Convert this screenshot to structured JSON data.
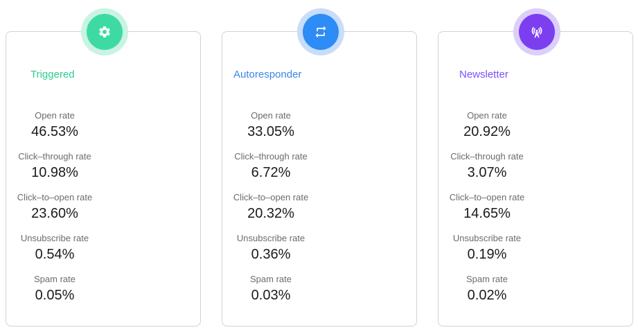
{
  "cards": [
    {
      "title": "Triggered",
      "icon": "gear-icon",
      "accent": "#2ecc8f",
      "badge_ring": "#c9f3e2",
      "badge_fill": "#3ddba3",
      "metrics": [
        {
          "label": "Open rate",
          "value": "46.53%"
        },
        {
          "label": "Click–through rate",
          "value": "10.98%"
        },
        {
          "label": "Click–to–open rate",
          "value": "23.60%"
        },
        {
          "label": "Unsubscribe rate",
          "value": "0.54%"
        },
        {
          "label": "Spam rate",
          "value": "0.05%"
        }
      ]
    },
    {
      "title": "Autoresponder",
      "icon": "repeat-arrows-icon",
      "accent": "#3a86e8",
      "badge_ring": "#c7ddfb",
      "badge_fill": "#2d8cf5",
      "metrics": [
        {
          "label": "Open rate",
          "value": "33.05%"
        },
        {
          "label": "Click–through rate",
          "value": "6.72%"
        },
        {
          "label": "Click–to–open rate",
          "value": "20.32%"
        },
        {
          "label": "Unsubscribe rate",
          "value": "0.36%"
        },
        {
          "label": "Spam rate",
          "value": "0.03%"
        }
      ]
    },
    {
      "title": "Newsletter",
      "icon": "broadcast-icon",
      "accent": "#7c4dff",
      "badge_ring": "#dccffb",
      "badge_fill": "#7c3ff0",
      "metrics": [
        {
          "label": "Open rate",
          "value": "20.92%"
        },
        {
          "label": "Click–through rate",
          "value": "3.07%"
        },
        {
          "label": "Click–to–open rate",
          "value": "14.65%"
        },
        {
          "label": "Unsubscribe rate",
          "value": "0.19%"
        },
        {
          "label": "Spam rate",
          "value": "0.02%"
        }
      ]
    }
  ]
}
